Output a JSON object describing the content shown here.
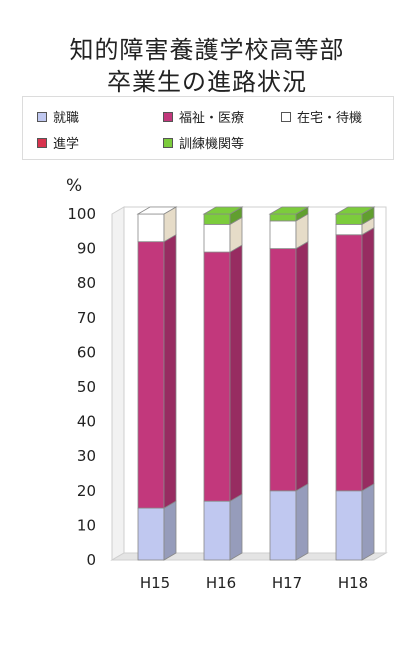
{
  "title_line1": "知的障害養護学校高等部",
  "title_line2": "卒業生の進路状況",
  "unit_label": "%",
  "chart_data": {
    "type": "bar",
    "stacked": true,
    "categories": [
      "H15",
      "H16",
      "H17",
      "H18"
    ],
    "ylim": [
      0,
      100
    ],
    "yticks": [
      0,
      10,
      20,
      30,
      40,
      50,
      60,
      70,
      80,
      90,
      100
    ],
    "legend_position": "top",
    "series": [
      {
        "name": "就職",
        "color": "#c0c8f0",
        "values": [
          15,
          17,
          20,
          20
        ]
      },
      {
        "name": "福祉・医療",
        "color": "#c2387c",
        "values": [
          77,
          72,
          70,
          74
        ]
      },
      {
        "name": "在宅・待機",
        "color": "#ffffff",
        "values": [
          8,
          8,
          8,
          3
        ]
      },
      {
        "name": "進学",
        "color": "#d8334e",
        "values": [
          0,
          0,
          0,
          0
        ]
      },
      {
        "name": "訓練機関等",
        "color": "#7ccc3c",
        "values": [
          0,
          3,
          2,
          3
        ]
      }
    ]
  }
}
